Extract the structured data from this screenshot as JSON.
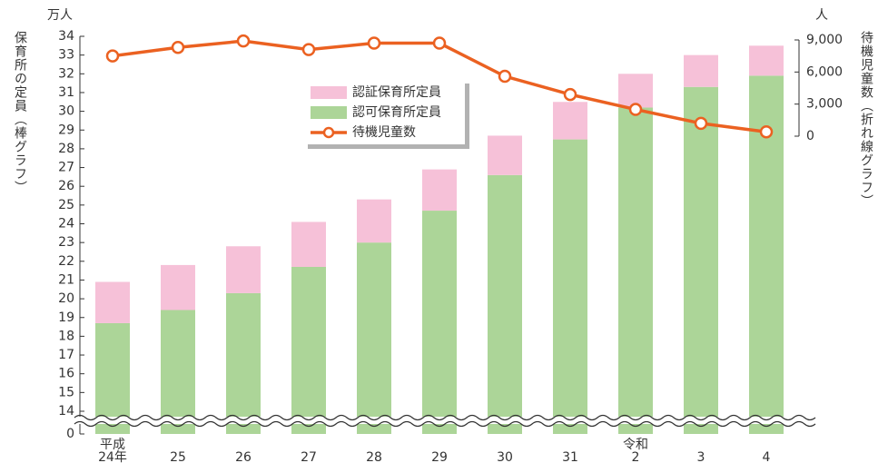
{
  "chart_data": {
    "type": "bar",
    "y_unit": "万人",
    "y_label": "保育所の定員（棒グラフ）",
    "y2_unit": "人",
    "y2_label": "待機児童数（折れ線グラフ）",
    "categories": [
      "24年",
      "25",
      "26",
      "27",
      "28",
      "29",
      "30",
      "31",
      "2",
      "3",
      "4"
    ],
    "x_era_labels": [
      "平成",
      null,
      null,
      null,
      null,
      null,
      null,
      null,
      "令和",
      null,
      null
    ],
    "series": [
      {
        "name": "認可保育所定員",
        "color": "#acd598",
        "values": [
          18.7,
          19.4,
          20.3,
          21.7,
          23.0,
          24.7,
          26.6,
          28.5,
          30.2,
          31.3,
          31.9
        ]
      },
      {
        "name": "認証保育所定員",
        "color": "#f6c1d8",
        "values": [
          2.2,
          2.4,
          2.5,
          2.4,
          2.3,
          2.2,
          2.1,
          2.0,
          1.8,
          1.7,
          1.6
        ]
      },
      {
        "name": "待機児童数",
        "type": "line",
        "axis": "y2",
        "color": "#eb6121",
        "values": [
          7500,
          8300,
          8900,
          8100,
          8700,
          8700,
          5600,
          3900,
          2500,
          1200,
          400
        ]
      }
    ],
    "ylim": [
      0,
      34
    ],
    "axis_break": [
      0,
      14
    ],
    "yticks": [
      0,
      14,
      15,
      16,
      17,
      18,
      19,
      20,
      21,
      22,
      23,
      24,
      25,
      26,
      27,
      28,
      29,
      30,
      31,
      32,
      33,
      34
    ],
    "y2lim": [
      0,
      9000
    ],
    "y2ticks": [
      0,
      {
        "value": 3000,
        "label": "3,000"
      },
      {
        "value": 6000,
        "label": "6,000"
      },
      {
        "value": 9000,
        "label": "9,000"
      }
    ],
    "grid": false
  }
}
